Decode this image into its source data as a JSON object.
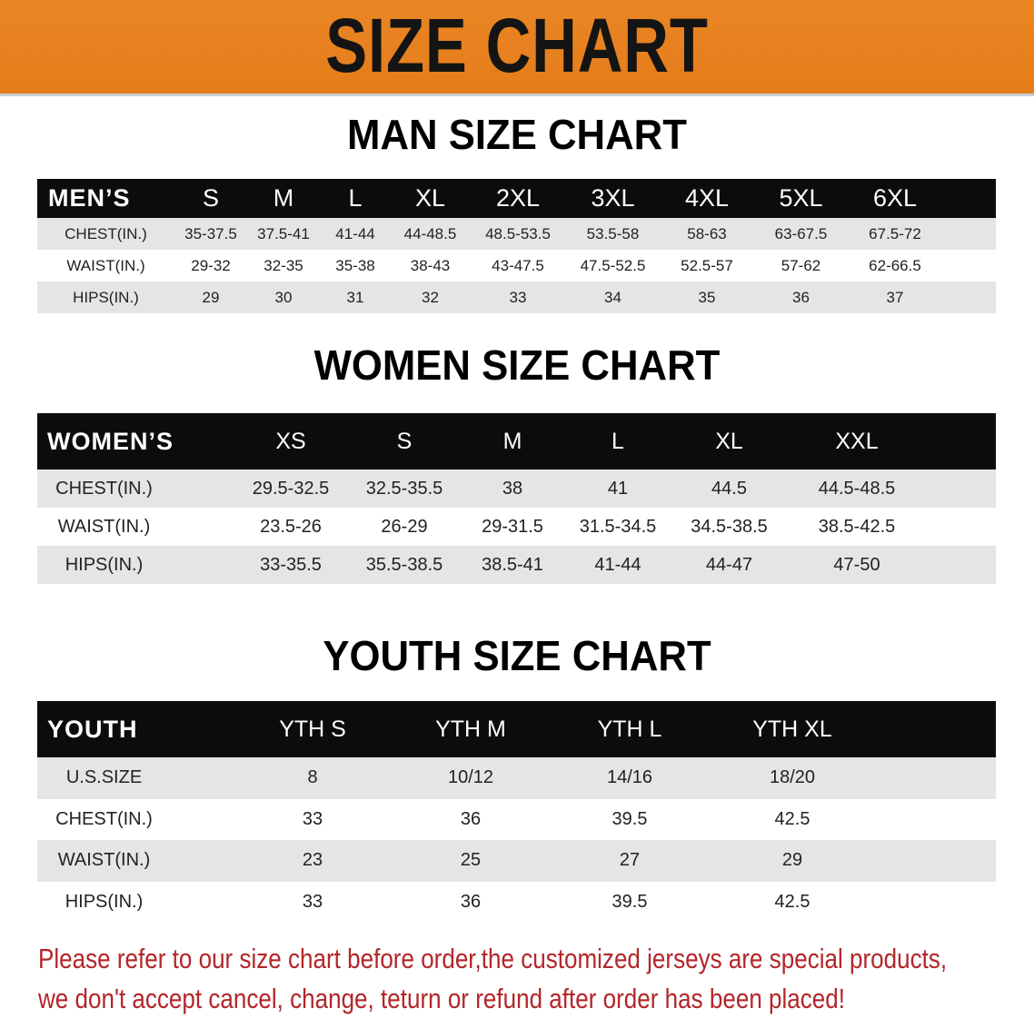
{
  "banner": {
    "title": "SIZE CHART",
    "background_color": "#E8801E"
  },
  "men": {
    "title": "MAN SIZE CHART",
    "header": [
      "MEN’S",
      "S",
      "M",
      "L",
      "XL",
      "2XL",
      "3XL",
      "4XL",
      "5XL",
      "6XL"
    ],
    "rows": [
      [
        "CHEST(IN.)",
        "35-37.5",
        "37.5-41",
        "41-44",
        "44-48.5",
        "48.5-53.5",
        "53.5-58",
        "58-63",
        "63-67.5",
        "67.5-72"
      ],
      [
        "WAIST(IN.)",
        "29-32",
        "32-35",
        "35-38",
        "38-43",
        "43-47.5",
        "47.5-52.5",
        "52.5-57",
        "57-62",
        "62-66.5"
      ],
      [
        "HIPS(IN.)",
        "29",
        "30",
        "31",
        "32",
        "33",
        "34",
        "35",
        "36",
        "37"
      ]
    ]
  },
  "women": {
    "title": "WOMEN SIZE CHART",
    "header": [
      "WOMEN’S",
      "XS",
      "S",
      "M",
      "L",
      "XL",
      "XXL"
    ],
    "rows": [
      [
        "CHEST(IN.)",
        "29.5-32.5",
        "32.5-35.5",
        "38",
        "41",
        "44.5",
        "44.5-48.5"
      ],
      [
        "WAIST(IN.)",
        "23.5-26",
        "26-29",
        "29-31.5",
        "31.5-34.5",
        "34.5-38.5",
        "38.5-42.5"
      ],
      [
        "HIPS(IN.)",
        "33-35.5",
        "35.5-38.5",
        "38.5-41",
        "41-44",
        "44-47",
        "47-50"
      ]
    ]
  },
  "youth": {
    "title": "YOUTH SIZE CHART",
    "header": [
      "YOUTH",
      "YTH S",
      "YTH M",
      "YTH L",
      "YTH XL"
    ],
    "rows": [
      [
        "U.S.SIZE",
        "8",
        "10/12",
        "14/16",
        "18/20"
      ],
      [
        "CHEST(IN.)",
        "33",
        "36",
        "39.5",
        "42.5"
      ],
      [
        "WAIST(IN.)",
        "23",
        "25",
        "27",
        "29"
      ],
      [
        "HIPS(IN.)",
        "33",
        "36",
        "39.5",
        "42.5"
      ]
    ]
  },
  "notice": {
    "line1": "Please refer to our size chart before order,the customized jerseys are special products,",
    "line2": "we don't accept cancel, change, teturn or refund after order has been placed!",
    "color": "#B3262A"
  }
}
